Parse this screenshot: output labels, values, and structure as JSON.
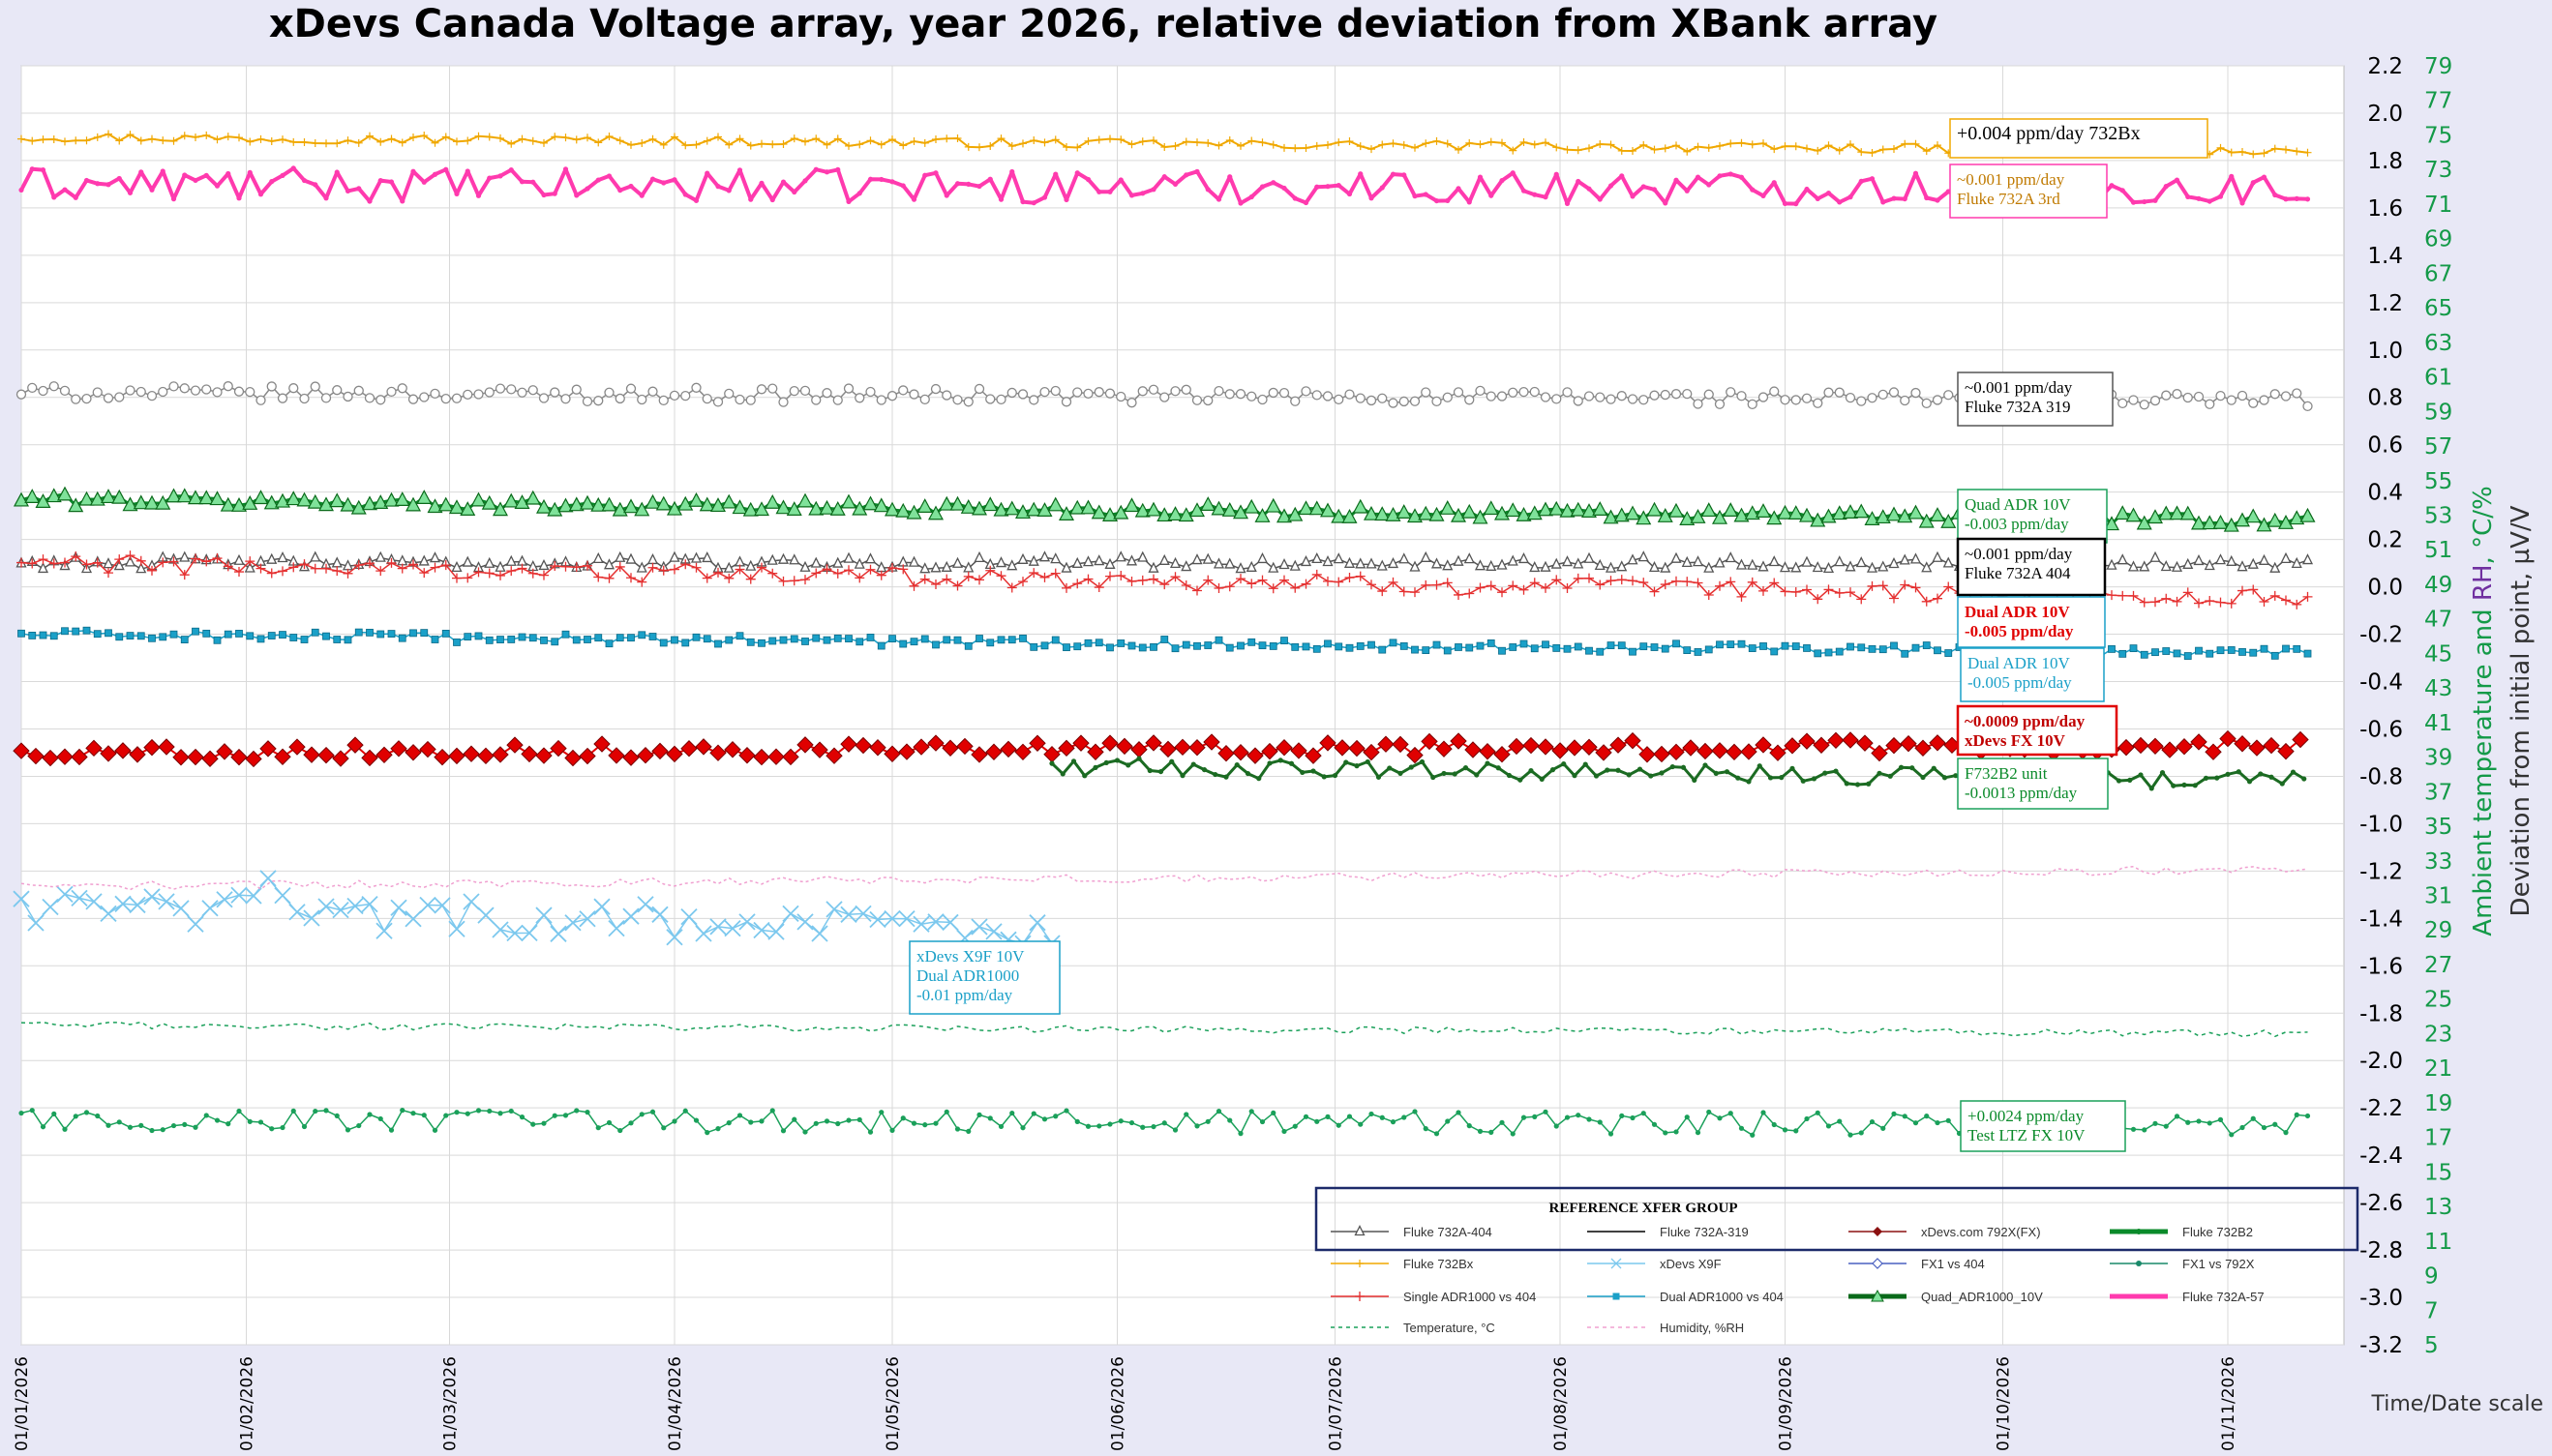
{
  "chart_data": {
    "type": "line",
    "title": "xDevs Canada Voltage array, year 2026, relative deviation from XBank array",
    "xlabel": "Time/Date scale",
    "ylabel_left": "Deviation from initial point, µV/V",
    "ylabel_right": [
      "Ambient temperature",
      " and ",
      "RH",
      ", °C/%"
    ],
    "ylim_left": [
      -3.2,
      2.2
    ],
    "ylim_right": [
      5,
      79
    ],
    "y_ticks_left": [
      "2.2",
      "2.0",
      "1.8",
      "1.6",
      "1.4",
      "1.2",
      "1.0",
      "0.8",
      "0.6",
      "0.4",
      "0.2",
      "0.0",
      "-0.2",
      "-0.4",
      "-0.6",
      "-0.8",
      "-1.0",
      "-1.2",
      "-1.4",
      "-1.6",
      "-1.8",
      "-2.0",
      "-2.2",
      "-2.4",
      "-2.6",
      "-2.8",
      "-3.0",
      "-3.2"
    ],
    "y_ticks_right": [
      "79",
      "77",
      "75",
      "73",
      "71",
      "69",
      "67",
      "65",
      "63",
      "61",
      "59",
      "57",
      "55",
      "53",
      "51",
      "49",
      "47",
      "45",
      "43",
      "41",
      "39",
      "37",
      "35",
      "33",
      "31",
      "29",
      "27",
      "25",
      "23",
      "21",
      "19",
      "17",
      "15",
      "13",
      "11",
      "9",
      "7",
      "5"
    ],
    "x_ticks": [
      "01/01/2026",
      "01/02/2026",
      "01/03/2026",
      "01/04/2026",
      "01/05/2026",
      "01/06/2026",
      "01/07/2026",
      "01/08/2026",
      "01/09/2026",
      "01/10/2026",
      "01/11/2026"
    ],
    "x_range_days": [
      0,
      320
    ],
    "data_span_days": [
      0,
      315
    ],
    "grid": true,
    "legend_position": "bottom-right",
    "series": [
      {
        "name": "Fluke 732Bx",
        "axis": "left",
        "color": "#f0a800",
        "marker": "cross",
        "x_start": 0,
        "x_end": 315,
        "start": 1.9,
        "end": 1.84,
        "noise": 0.02,
        "width": 2
      },
      {
        "name": "Fluke 732A-57",
        "axis": "left",
        "color": "#ff3aae",
        "marker": "dot",
        "x_start": 0,
        "x_end": 315,
        "start": 1.7,
        "end": 1.68,
        "noise": 0.07,
        "width": 4
      },
      {
        "name": "xDevs.com 792X(FX)",
        "axis": "left",
        "color": "#888888",
        "marker": "circle",
        "x_start": 0,
        "x_end": 315,
        "start": 0.82,
        "end": 0.79,
        "noise": 0.03,
        "width": 1.5
      },
      {
        "name": "Quad_ADR1000_10V",
        "axis": "left",
        "color": "#0a8a2a",
        "marker": "triangle-fill",
        "x_start": 0,
        "x_end": 315,
        "start": 0.37,
        "end": 0.28,
        "noise": 0.025,
        "width": 3
      },
      {
        "name": "Fluke 732A-404",
        "axis": "left",
        "color": "#555555",
        "marker": "triangle",
        "x_start": 0,
        "x_end": 315,
        "start": 0.1,
        "end": 0.1,
        "noise": 0.025,
        "width": 1.5
      },
      {
        "name": "Single ADR1000 vs 404",
        "axis": "left",
        "color": "#e53030",
        "marker": "plus",
        "x_start": 0,
        "x_end": 315,
        "start": 0.1,
        "end": -0.05,
        "noise": 0.04,
        "width": 1.5
      },
      {
        "name": "Dual ADR1000 vs 404",
        "axis": "left",
        "color": "#1aa0c8",
        "marker": "square",
        "x_start": 0,
        "x_end": 315,
        "start": -0.2,
        "end": -0.28,
        "noise": 0.02,
        "width": 1.5
      },
      {
        "name": "FX1 vs 792X",
        "axis": "left",
        "color": "#e00000",
        "marker": "diamond",
        "x_start": 0,
        "x_end": 315,
        "start": -0.7,
        "end": -0.67,
        "noise": 0.03,
        "width": 2
      },
      {
        "name": "Fluke 732B2",
        "axis": "left",
        "color": "#1b6b22",
        "marker": "dot",
        "x_start": 142,
        "x_end": 315,
        "start": -0.76,
        "end": -0.82,
        "noise": 0.04,
        "width": 3
      },
      {
        "name": "xDevs X9F",
        "axis": "left",
        "color": "#7cc8ee",
        "marker": "x",
        "x_start": 0,
        "x_end": 143,
        "start": -1.35,
        "end": -1.45,
        "noise": 0.07,
        "width": 1.5
      },
      {
        "name": "FX1 vs 404",
        "axis": "left",
        "color": "#1aa05a",
        "marker": "dot",
        "x_start": 0,
        "x_end": 315,
        "start": -2.25,
        "end": -2.27,
        "noise": 0.05,
        "width": 1.5
      },
      {
        "name": "Temperature, °C",
        "axis": "right",
        "color": "#1aa05a",
        "marker": "none",
        "dash": "4,4",
        "x_start": 0,
        "x_end": 315,
        "start": 23.5,
        "end": 23.0,
        "noise": 0.2,
        "width": 1.5
      },
      {
        "name": "Humidity, %RH",
        "axis": "right",
        "color": "#f0a0d0",
        "marker": "none",
        "dash": "3,3",
        "x_start": 0,
        "x_end": 315,
        "start": 31.5,
        "end": 32.5,
        "noise": 0.25,
        "width": 1.5
      }
    ],
    "annotations": [
      {
        "lines": [
          "+0.004 ppm/day 732Bx"
        ],
        "color": "#000000",
        "border": "#f0a800"
      },
      {
        "lines": [
          "~0.001 ppm/day",
          "Fluke 732A 3rd"
        ],
        "color": "#c07a00",
        "border": "#ff3aae"
      },
      {
        "lines": [
          "~0.001 ppm/day",
          "Fluke 732A 319"
        ],
        "color": "#000000",
        "border": "#555555"
      },
      {
        "lines": [
          "Quad ADR 10V",
          "-0.003 ppm/day"
        ],
        "color": "#0a8a2a",
        "border": "#1aa05a"
      },
      {
        "lines": [
          "~0.001 ppm/day",
          "Fluke 732A 404"
        ],
        "color": "#000000",
        "border": "#000000"
      },
      {
        "lines": [
          "Dual ADR 10V",
          "-0.005 ppm/day"
        ],
        "color": "#e00000",
        "border": "#1aa0c8"
      },
      {
        "lines": [
          "Dual ADR 10V",
          "-0.005 ppm/day"
        ],
        "color": "#1aa0c8",
        "border": "#1aa0c8"
      },
      {
        "lines": [
          "~0.0009 ppm/day",
          "xDevs FX 10V"
        ],
        "color": "#c00000",
        "border": "#e00000"
      },
      {
        "lines": [
          "F732B2 unit",
          "-0.0013 ppm/day"
        ],
        "color": "#0a8a2a",
        "border": "#1aa05a"
      },
      {
        "lines": [
          "xDevs X9F 10V",
          "Dual ADR1000",
          "-0.01 ppm/day"
        ],
        "color": "#1aa0c8",
        "border": "#1aa0c8"
      },
      {
        "lines": [
          "+0.0024 ppm/day",
          "Test LTZ FX 10V"
        ],
        "color": "#0a8a2a",
        "border": "#1aa05a"
      }
    ],
    "legend": {
      "title": "REFERENCE XFER GROUP",
      "items": [
        {
          "label": "Fluke 732A-404",
          "color": "#555555",
          "marker": "triangle"
        },
        {
          "label": "Fluke 732A-319",
          "color": "#000000",
          "marker": "none"
        },
        {
          "label": "xDevs.com 792X(FX)",
          "color": "#8b1010",
          "marker": "diamond"
        },
        {
          "label": "Fluke 732B2",
          "color": "#0a8a2a",
          "marker": "dot-thick"
        },
        {
          "label": "Fluke 732Bx",
          "color": "#f0a800",
          "marker": "cross"
        },
        {
          "label": "xDevs X9F",
          "color": "#7cc8ee",
          "marker": "x"
        },
        {
          "label": "FX1 vs 404",
          "color": "#4a60c0",
          "marker": "diamond-open"
        },
        {
          "label": "FX1 vs 792X",
          "color": "#1a8a6a",
          "marker": "dot"
        },
        {
          "label": "Single ADR1000 vs 404",
          "color": "#e53030",
          "marker": "plus"
        },
        {
          "label": "Dual ADR1000 vs 404",
          "color": "#1aa0c8",
          "marker": "square"
        },
        {
          "label": "Quad_ADR1000_10V",
          "color": "#0a6a1a",
          "marker": "triangle-thick"
        },
        {
          "label": "Fluke 732A-57",
          "color": "#ff3aae",
          "marker": "thick"
        },
        {
          "label": "Temperature, °C",
          "color": "#1aa05a",
          "marker": "dash"
        },
        {
          "label": "Humidity, %RH",
          "color": "#f0a0d0",
          "marker": "dash"
        }
      ]
    }
  }
}
